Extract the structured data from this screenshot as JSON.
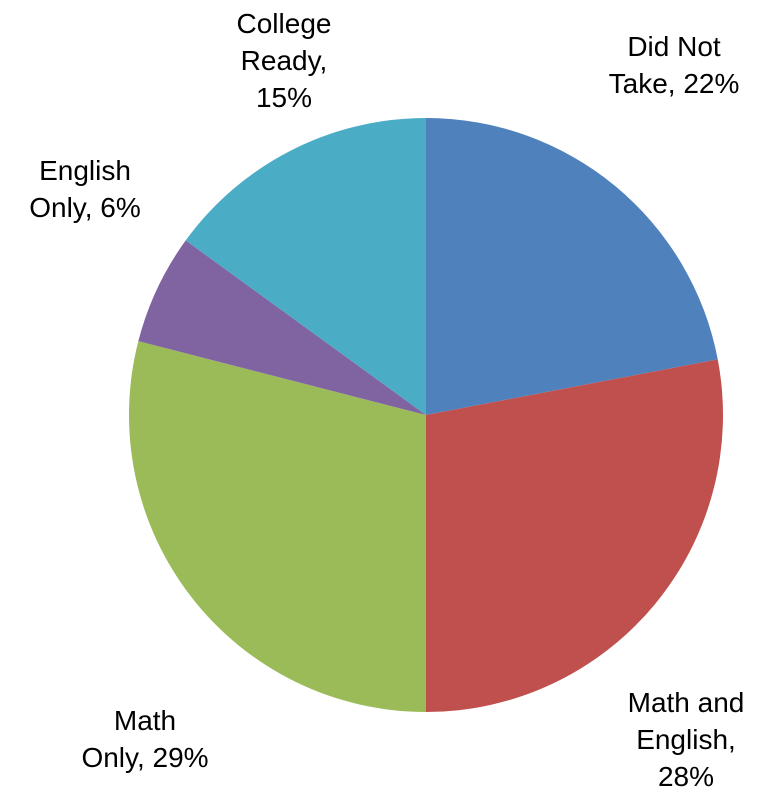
{
  "chart_data": {
    "type": "pie",
    "title": "",
    "slices": [
      {
        "label": "Did Not Take",
        "value": 22,
        "color": "#4F81BD"
      },
      {
        "label": "Math and English",
        "value": 28,
        "color": "#C0504D"
      },
      {
        "label": "Math Only",
        "value": 29,
        "color": "#9BBB59"
      },
      {
        "label": "English Only",
        "value": 6,
        "color": "#8064A2"
      },
      {
        "label": "College Ready",
        "value": 15,
        "color": "#4BACC6"
      }
    ],
    "data_labels": [
      {
        "lines": [
          "Did Not",
          "Take, 22%"
        ]
      },
      {
        "lines": [
          "Math and",
          "English,",
          "28%"
        ]
      },
      {
        "lines": [
          "Math",
          "Only, 29%"
        ]
      },
      {
        "lines": [
          "English",
          "Only, 6%"
        ]
      },
      {
        "lines": [
          "College",
          "Ready,",
          "15%"
        ]
      }
    ],
    "value_unit": "%",
    "start": "12 o'clock",
    "direction": "clockwise",
    "legend": "none"
  }
}
